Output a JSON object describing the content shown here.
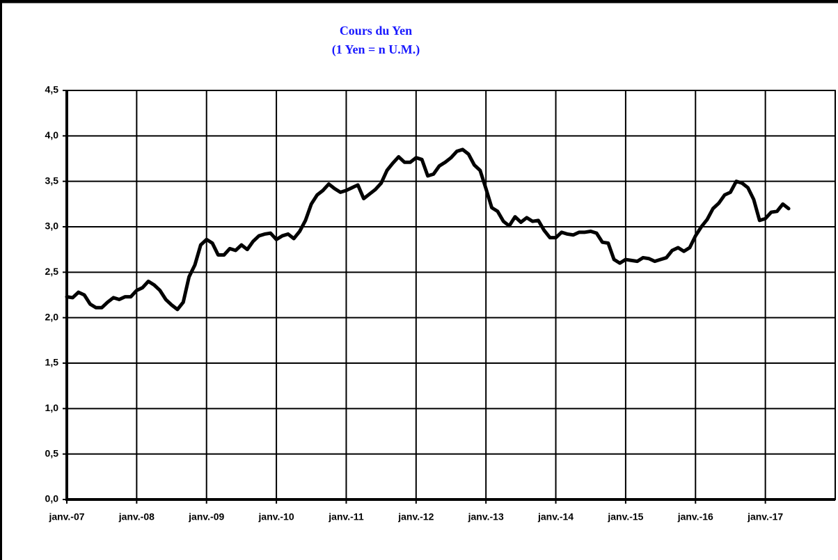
{
  "chart_data": {
    "type": "line",
    "title": "Cours du Yen",
    "subtitle": "(1 Yen = n U.M.)",
    "color": "#000000",
    "grid": true,
    "ylim": [
      0,
      4.5
    ],
    "yticks": [
      {
        "value": 0,
        "label": "0,0"
      },
      {
        "value": 0.5,
        "label": "0,5"
      },
      {
        "value": 1,
        "label": "1,0"
      },
      {
        "value": 1.5,
        "label": "1,5"
      },
      {
        "value": 2,
        "label": "2,0"
      },
      {
        "value": 2.5,
        "label": "2,5"
      },
      {
        "value": 3,
        "label": "3,0"
      },
      {
        "value": 3.5,
        "label": "3,5"
      },
      {
        "value": 4,
        "label": "4,0"
      },
      {
        "value": 4.5,
        "label": "4,5"
      }
    ],
    "categories": [
      "janv.-07",
      null,
      null,
      null,
      null,
      null,
      null,
      null,
      null,
      null,
      null,
      null,
      "janv.-08",
      null,
      null,
      null,
      null,
      null,
      null,
      null,
      null,
      null,
      null,
      null,
      "janv.-09",
      null,
      null,
      null,
      null,
      null,
      null,
      null,
      null,
      null,
      null,
      null,
      "janv.-10",
      null,
      null,
      null,
      null,
      null,
      null,
      null,
      null,
      null,
      null,
      null,
      "janv.-11",
      null,
      null,
      null,
      null,
      null,
      null,
      null,
      null,
      null,
      null,
      null,
      "janv.-12",
      null,
      null,
      null,
      null,
      null,
      null,
      null,
      null,
      null,
      null,
      null,
      "janv.-13",
      null,
      null,
      null,
      null,
      null,
      null,
      null,
      null,
      null,
      null,
      null,
      "janv.-14",
      null,
      null,
      null,
      null,
      null,
      null,
      null,
      null,
      null,
      null,
      null,
      "janv.-15",
      null,
      null,
      null,
      null,
      null,
      null,
      null,
      null,
      null,
      null,
      null,
      "janv.-16",
      null,
      null,
      null,
      null,
      null,
      null,
      null,
      null,
      null,
      null,
      null,
      "janv.-17",
      null,
      null,
      null,
      null
    ],
    "values": [
      2.23,
      2.22,
      2.28,
      2.25,
      2.15,
      2.11,
      2.11,
      2.17,
      2.22,
      2.2,
      2.23,
      2.23,
      2.3,
      2.33,
      2.4,
      2.36,
      2.3,
      2.2,
      2.14,
      2.09,
      2.17,
      2.45,
      2.58,
      2.8,
      2.86,
      2.82,
      2.69,
      2.69,
      2.76,
      2.74,
      2.8,
      2.75,
      2.84,
      2.9,
      2.92,
      2.93,
      2.86,
      2.9,
      2.92,
      2.87,
      2.95,
      3.07,
      3.25,
      3.35,
      3.4,
      3.47,
      3.42,
      3.38,
      3.4,
      3.43,
      3.46,
      3.31,
      3.36,
      3.41,
      3.48,
      3.62,
      3.7,
      3.77,
      3.71,
      3.71,
      3.76,
      3.74,
      3.56,
      3.58,
      3.67,
      3.71,
      3.76,
      3.83,
      3.85,
      3.8,
      3.68,
      3.62,
      3.42,
      3.21,
      3.17,
      3.06,
      3.01,
      3.11,
      3.05,
      3.1,
      3.06,
      3.07,
      2.96,
      2.88,
      2.88,
      2.94,
      2.92,
      2.91,
      2.94,
      2.94,
      2.95,
      2.93,
      2.83,
      2.82,
      2.64,
      2.6,
      2.64,
      2.63,
      2.62,
      2.66,
      2.65,
      2.62,
      2.64,
      2.66,
      2.74,
      2.77,
      2.73,
      2.77,
      2.9,
      3.0,
      3.08,
      3.2,
      3.26,
      3.35,
      3.38,
      3.5,
      3.48,
      3.43,
      3.3,
      3.07,
      3.09,
      3.16,
      3.17,
      3.25,
      3.2
    ]
  }
}
